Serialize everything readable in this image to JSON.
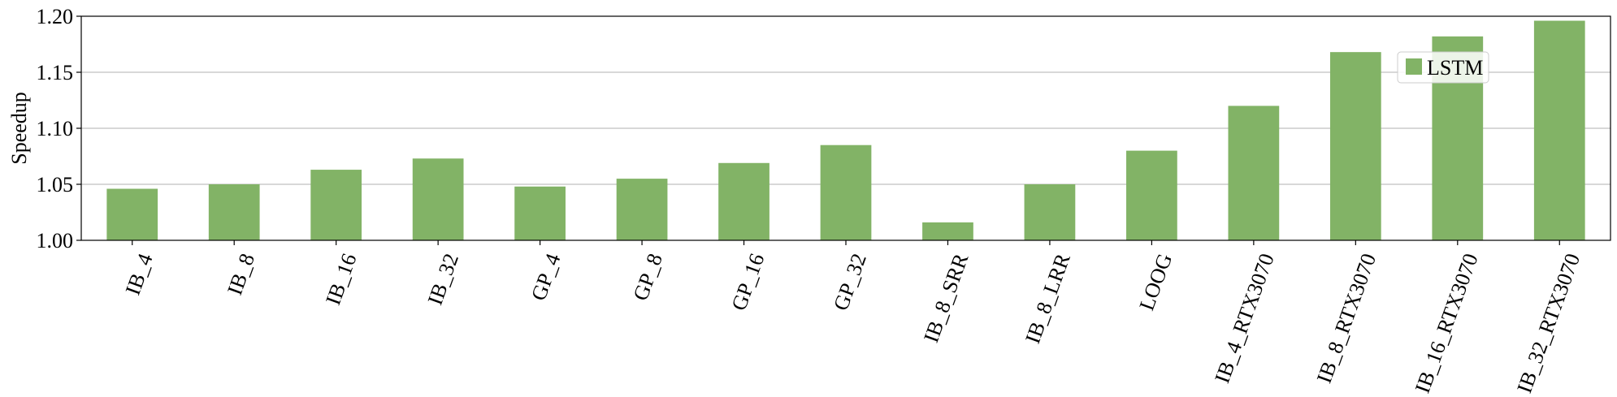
{
  "chart_data": {
    "type": "bar",
    "title": "",
    "xlabel": "",
    "ylabel": "Speedup",
    "ylim": [
      1.0,
      1.2
    ],
    "yticks": [
      "1.00",
      "1.05",
      "1.10",
      "1.15",
      "1.20"
    ],
    "grid": "horizontal",
    "legend_position": "upper-right",
    "categories": [
      "IB_4",
      "IB_8",
      "IB_16",
      "IB_32",
      "GP_4",
      "GP_8",
      "GP_16",
      "GP_32",
      "IB_8_SRR",
      "IB_8_LRR",
      "LOOG",
      "IB_4_RTX3070",
      "IB_8_RTX3070",
      "IB_16_RTX3070",
      "IB_32_RTX3070"
    ],
    "series": [
      {
        "name": "LSTM",
        "color": "#82b366",
        "values": [
          1.046,
          1.05,
          1.063,
          1.073,
          1.048,
          1.055,
          1.069,
          1.085,
          1.016,
          1.05,
          1.08,
          1.12,
          1.168,
          1.182,
          1.196
        ]
      }
    ]
  }
}
